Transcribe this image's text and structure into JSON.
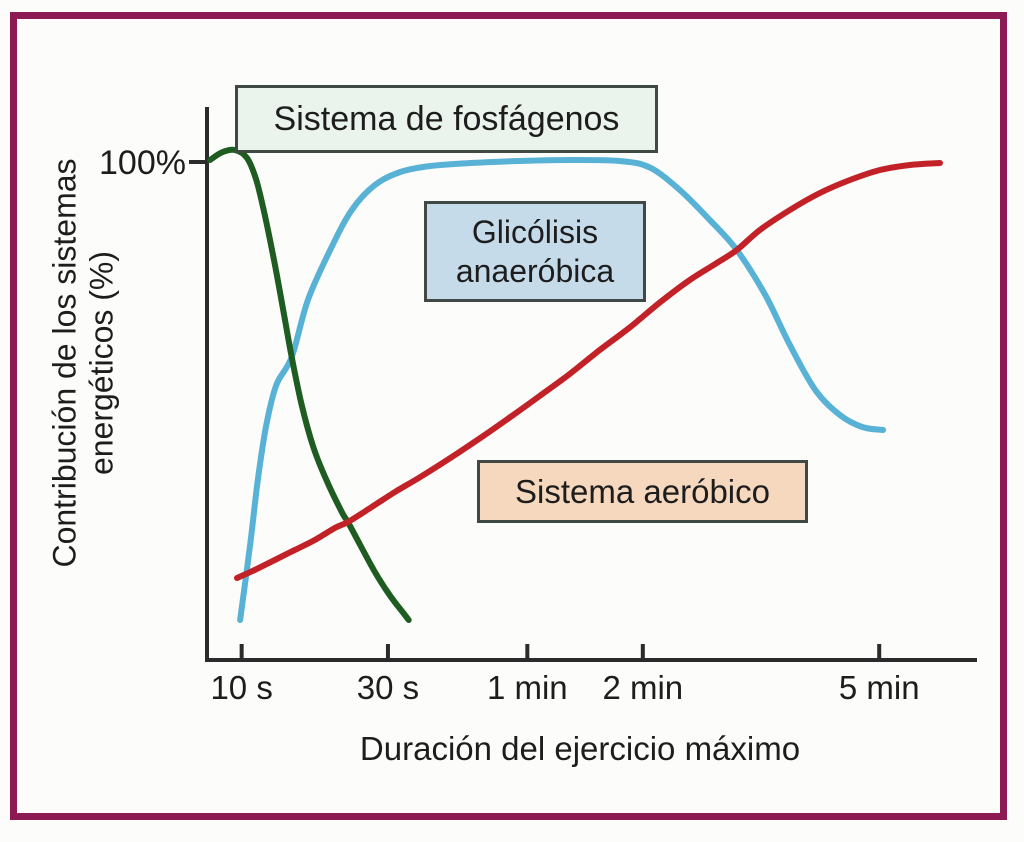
{
  "figure": {
    "background": "#fcfcfa",
    "frame_color": "#8b1b52",
    "axis_color": "#2b2b2b"
  },
  "chart_data": {
    "type": "line",
    "title": "",
    "xlabel": "Duración del ejercicio máximo",
    "ylabel": "Contribución de los sistemas energéticos (%)",
    "ylabel_lines": [
      "Contribución de los sistemas",
      "energéticos (%)"
    ],
    "y_top_tick_label": "100%",
    "ylim": [
      0,
      100
    ],
    "grid": false,
    "x_scale": "nonlinear time axis (10 s → >5 min)",
    "x_ticks": [
      {
        "label": "10 s",
        "f": 0.045
      },
      {
        "label": "30 s",
        "f": 0.235
      },
      {
        "label": "1 min",
        "f": 0.416
      },
      {
        "label": "2 min",
        "f": 0.566
      },
      {
        "label": "5 min",
        "f": 0.873
      }
    ],
    "series": [
      {
        "id": "glicolisis_anaerobica",
        "name": "Glicólisis anaeróbica",
        "color": "#58b2d6",
        "points": [
          [
            0.043,
            8
          ],
          [
            0.056,
            23
          ],
          [
            0.066,
            36
          ],
          [
            0.077,
            47
          ],
          [
            0.09,
            55
          ],
          [
            0.11,
            60.6
          ],
          [
            0.131,
            72
          ],
          [
            0.16,
            82
          ],
          [
            0.188,
            90
          ],
          [
            0.218,
            95
          ],
          [
            0.251,
            97.6
          ],
          [
            0.29,
            98.8
          ],
          [
            0.342,
            99.4
          ],
          [
            0.406,
            99.8
          ],
          [
            0.471,
            100
          ],
          [
            0.536,
            99.8
          ],
          [
            0.575,
            98.5
          ],
          [
            0.614,
            94
          ],
          [
            0.653,
            88
          ],
          [
            0.688,
            82
          ],
          [
            0.725,
            73
          ],
          [
            0.757,
            63
          ],
          [
            0.79,
            54
          ],
          [
            0.822,
            49
          ],
          [
            0.851,
            46.6
          ],
          [
            0.878,
            46
          ]
        ]
      },
      {
        "id": "sistema_de_fosfagenos",
        "name": "Sistema de fosfágenos",
        "color": "#1e5c21",
        "points": [
          [
            0.004,
            100
          ],
          [
            0.019,
            101.5
          ],
          [
            0.036,
            102
          ],
          [
            0.052,
            100.4
          ],
          [
            0.064,
            96
          ],
          [
            0.075,
            89
          ],
          [
            0.087,
            80
          ],
          [
            0.099,
            70
          ],
          [
            0.11,
            60.6
          ],
          [
            0.123,
            51
          ],
          [
            0.138,
            42.6
          ],
          [
            0.155,
            36
          ],
          [
            0.175,
            29.6
          ],
          [
            0.183,
            27.6
          ],
          [
            0.199,
            23
          ],
          [
            0.218,
            17.6
          ],
          [
            0.238,
            12.8
          ],
          [
            0.255,
            9.4
          ],
          [
            0.262,
            8
          ]
        ]
      },
      {
        "id": "sistema_aerobico",
        "name": "Sistema aeróbico",
        "color": "#c22227",
        "points": [
          [
            0.039,
            16.4
          ],
          [
            0.062,
            18
          ],
          [
            0.088,
            20
          ],
          [
            0.114,
            22
          ],
          [
            0.14,
            24
          ],
          [
            0.166,
            26.4
          ],
          [
            0.183,
            27.6
          ],
          [
            0.212,
            30.4
          ],
          [
            0.244,
            33.6
          ],
          [
            0.277,
            36.6
          ],
          [
            0.316,
            40.4
          ],
          [
            0.355,
            44.4
          ],
          [
            0.394,
            48.6
          ],
          [
            0.432,
            52.8
          ],
          [
            0.471,
            57.2
          ],
          [
            0.51,
            62
          ],
          [
            0.549,
            66.5
          ],
          [
            0.588,
            71.5
          ],
          [
            0.627,
            76
          ],
          [
            0.66,
            79.2
          ],
          [
            0.688,
            82
          ],
          [
            0.718,
            86
          ],
          [
            0.757,
            90
          ],
          [
            0.796,
            93.4
          ],
          [
            0.835,
            96
          ],
          [
            0.874,
            98
          ],
          [
            0.913,
            99
          ],
          [
            0.952,
            99.4
          ]
        ]
      }
    ]
  },
  "label_boxes": {
    "fosfagenos": {
      "text": "Sistema de fosfágenos",
      "bg": "#ebf3ed"
    },
    "glicolisis": {
      "line1": "Glicólisis",
      "line2": "anaeróbica",
      "bg": "#c6dbe9"
    },
    "aerobico": {
      "text": "Sistema aeróbico",
      "bg": "#f6d8bf"
    }
  }
}
